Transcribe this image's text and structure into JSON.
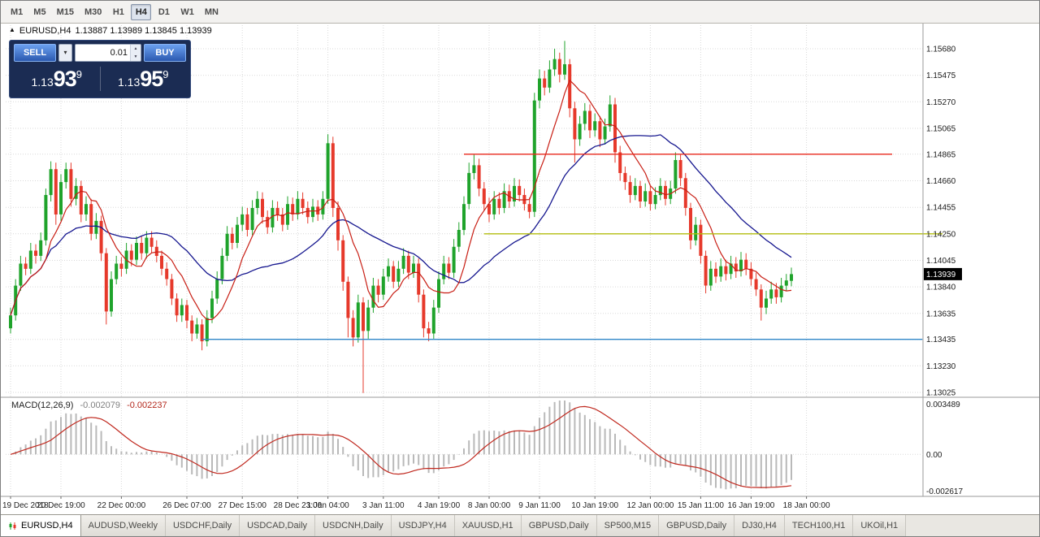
{
  "toolbar": {
    "timeframes": [
      {
        "label": "M1"
      },
      {
        "label": "M5"
      },
      {
        "label": "M15"
      },
      {
        "label": "M30"
      },
      {
        "label": "H1"
      },
      {
        "label": "H4"
      },
      {
        "label": "D1"
      },
      {
        "label": "W1"
      },
      {
        "label": "MN"
      }
    ],
    "active": "H4"
  },
  "chart": {
    "symbol": "EURUSD,H4",
    "ohlc": "1.13887 1.13989 1.13845 1.13939"
  },
  "one_click": {
    "sell_label": "SELL",
    "buy_label": "BUY",
    "lot_value": "0.01",
    "sell_price_small": "1.13",
    "sell_price_big": "93",
    "sell_price_sup": "9",
    "buy_price_small": "1.13",
    "buy_price_big": "95",
    "buy_price_sup": "9"
  },
  "price_axis": {
    "labels": [
      "1.15680",
      "1.15475",
      "1.15270",
      "1.15065",
      "1.14865",
      "1.14660",
      "1.14455",
      "1.14250",
      "1.14045",
      "1.13840",
      "1.13635",
      "1.13435",
      "1.13230",
      "1.13025"
    ],
    "current": "1.13939"
  },
  "time_axis": [
    {
      "label": "19 Dec 2018",
      "i": 0
    },
    {
      "label": "20 Dec 19:00",
      "i": 10
    },
    {
      "label": "22 Dec 00:00",
      "i": 22
    },
    {
      "label": "26 Dec 07:00",
      "i": 35
    },
    {
      "label": "27 Dec 15:00",
      "i": 46
    },
    {
      "label": "28 Dec 23:00",
      "i": 57
    },
    {
      "label": "1 Jan 04:00",
      "i": 63
    },
    {
      "label": "3 Jan 11:00",
      "i": 74
    },
    {
      "label": "4 Jan 19:00",
      "i": 85
    },
    {
      "label": "8 Jan 00:00",
      "i": 95
    },
    {
      "label": "9 Jan 11:00",
      "i": 105
    },
    {
      "label": "10 Jan 19:00",
      "i": 116
    },
    {
      "label": "12 Jan 00:00",
      "i": 127
    },
    {
      "label": "15 Jan 11:00",
      "i": 137
    },
    {
      "label": "16 Jan 19:00",
      "i": 147
    },
    {
      "label": "18 Jan 00:00",
      "i": 158
    }
  ],
  "macd": {
    "label": "MACD(12,26,9)",
    "value_main": "-0.002079",
    "value_signal": "-0.002237",
    "axis": [
      "0.003489",
      "0.00",
      "-0.002617"
    ]
  },
  "tabs": [
    {
      "label": "EURUSD,H4",
      "active": true
    },
    {
      "label": "AUDUSD,Weekly",
      "active": false
    },
    {
      "label": "USDCHF,Daily",
      "active": false
    },
    {
      "label": "USDCAD,Daily",
      "active": false
    },
    {
      "label": "USDCNH,Daily",
      "active": false
    },
    {
      "label": "USDJPY,H4",
      "active": false
    },
    {
      "label": "XAUUSD,H1",
      "active": false
    },
    {
      "label": "GBPUSD,Daily",
      "active": false
    },
    {
      "label": "SP500,M15",
      "active": false
    },
    {
      "label": "GBPUSD,Daily",
      "active": false
    },
    {
      "label": "DJ30,H4",
      "active": false
    },
    {
      "label": "TECH100,H1",
      "active": false
    },
    {
      "label": "UKOil,H1",
      "active": false
    }
  ],
  "colors": {
    "bull": "#1fa32b",
    "bear": "#e6392b",
    "ma_fast": "#c81e14",
    "ma_slow": "#16178f",
    "macd_hist": "#b9b9b9",
    "macd_signal": "#c0281e",
    "badge_bg": "#000000"
  },
  "chart_data": {
    "type": "candlestick",
    "symbol": "EURUSD",
    "timeframe": "H4",
    "ma": {
      "fast_period": 8,
      "slow_period": 26
    },
    "macd_params": [
      12,
      26,
      9
    ],
    "hlines": [
      {
        "price": 1.14865,
        "color": "#e8281b",
        "from_i": 90,
        "to_i": 175
      },
      {
        "price": 1.1425,
        "color": "#b3bd0e",
        "from_i": 94,
        "to_i": 185
      },
      {
        "price": 1.13435,
        "color": "#2f86c9",
        "from_i": 38,
        "to_i": 181
      }
    ],
    "candles": [
      [
        1.1352,
        1.1368,
        1.1348,
        1.1362
      ],
      [
        1.1362,
        1.139,
        1.1358,
        1.1385
      ],
      [
        1.1385,
        1.1408,
        1.1381,
        1.1402
      ],
      [
        1.1402,
        1.1407,
        1.1393,
        1.1398
      ],
      [
        1.1398,
        1.1418,
        1.1394,
        1.1412
      ],
      [
        1.1412,
        1.1417,
        1.1402,
        1.1408
      ],
      [
        1.1408,
        1.1426,
        1.1404,
        1.142
      ],
      [
        1.142,
        1.146,
        1.1416,
        1.1455
      ],
      [
        1.1455,
        1.1481,
        1.145,
        1.1475
      ],
      [
        1.1475,
        1.148,
        1.1432,
        1.144
      ],
      [
        1.144,
        1.1471,
        1.1435,
        1.1465
      ],
      [
        1.1465,
        1.148,
        1.146,
        1.1475
      ],
      [
        1.1475,
        1.148,
        1.1446,
        1.1452
      ],
      [
        1.1452,
        1.1468,
        1.1447,
        1.1462
      ],
      [
        1.1462,
        1.1466,
        1.1434,
        1.144
      ],
      [
        1.144,
        1.1454,
        1.1435,
        1.1448
      ],
      [
        1.1448,
        1.1452,
        1.142,
        1.1425
      ],
      [
        1.1425,
        1.1441,
        1.1421,
        1.1435
      ],
      [
        1.1435,
        1.1439,
        1.1404,
        1.141
      ],
      [
        1.141,
        1.1414,
        1.1355,
        1.1365
      ],
      [
        1.1365,
        1.1396,
        1.1361,
        1.139
      ],
      [
        1.139,
        1.1408,
        1.1386,
        1.1402
      ],
      [
        1.1402,
        1.1407,
        1.1392,
        1.1398
      ],
      [
        1.1398,
        1.1418,
        1.1394,
        1.1412
      ],
      [
        1.1412,
        1.1417,
        1.14,
        1.1405
      ],
      [
        1.1405,
        1.1423,
        1.1401,
        1.1418
      ],
      [
        1.1418,
        1.1423,
        1.1405,
        1.141
      ],
      [
        1.141,
        1.1427,
        1.1406,
        1.1422
      ],
      [
        1.1422,
        1.1427,
        1.141,
        1.1415
      ],
      [
        1.1415,
        1.142,
        1.1403,
        1.1408
      ],
      [
        1.1408,
        1.1412,
        1.1393,
        1.1398
      ],
      [
        1.1398,
        1.1403,
        1.1385,
        1.139
      ],
      [
        1.139,
        1.1394,
        1.137,
        1.1375
      ],
      [
        1.1375,
        1.1379,
        1.1357,
        1.1362
      ],
      [
        1.1362,
        1.1375,
        1.1357,
        1.137
      ],
      [
        1.137,
        1.1374,
        1.1352,
        1.1358
      ],
      [
        1.1358,
        1.1362,
        1.1342,
        1.1348
      ],
      [
        1.1348,
        1.136,
        1.1344,
        1.1355
      ],
      [
        1.1355,
        1.1359,
        1.1335,
        1.1342
      ],
      [
        1.1342,
        1.1366,
        1.1338,
        1.136
      ],
      [
        1.136,
        1.1381,
        1.1356,
        1.1375
      ],
      [
        1.1375,
        1.1396,
        1.1371,
        1.139
      ],
      [
        1.139,
        1.1414,
        1.1386,
        1.1408
      ],
      [
        1.1408,
        1.1431,
        1.1404,
        1.1425
      ],
      [
        1.1425,
        1.143,
        1.1413,
        1.1418
      ],
      [
        1.1418,
        1.1438,
        1.1414,
        1.1432
      ],
      [
        1.1432,
        1.1446,
        1.1427,
        1.144
      ],
      [
        1.144,
        1.1445,
        1.1423,
        1.1428
      ],
      [
        1.1428,
        1.1451,
        1.1424,
        1.1445
      ],
      [
        1.1445,
        1.1458,
        1.144,
        1.1452
      ],
      [
        1.1452,
        1.1457,
        1.1433,
        1.1438
      ],
      [
        1.1438,
        1.1443,
        1.1425,
        1.143
      ],
      [
        1.143,
        1.1451,
        1.1426,
        1.1445
      ],
      [
        1.1445,
        1.145,
        1.1435,
        1.144
      ],
      [
        1.144,
        1.1445,
        1.1427,
        1.1432
      ],
      [
        1.1432,
        1.1454,
        1.1428,
        1.1448
      ],
      [
        1.1448,
        1.1453,
        1.1435,
        1.144
      ],
      [
        1.144,
        1.1458,
        1.1436,
        1.1452
      ],
      [
        1.1452,
        1.1457,
        1.144,
        1.1445
      ],
      [
        1.1445,
        1.145,
        1.1433,
        1.1438
      ],
      [
        1.1438,
        1.1452,
        1.1434,
        1.1446
      ],
      [
        1.1446,
        1.1451,
        1.1435,
        1.144
      ],
      [
        1.144,
        1.1458,
        1.1436,
        1.1452
      ],
      [
        1.1452,
        1.1502,
        1.1448,
        1.1495
      ],
      [
        1.1495,
        1.15,
        1.1438,
        1.1445
      ],
      [
        1.1445,
        1.145,
        1.1412,
        1.142
      ],
      [
        1.142,
        1.1424,
        1.1381,
        1.1388
      ],
      [
        1.1388,
        1.1392,
        1.1345,
        1.136
      ],
      [
        1.136,
        1.1366,
        1.1338,
        1.1345
      ],
      [
        1.1345,
        1.1378,
        1.1341,
        1.1372
      ],
      [
        1.1372,
        1.1376,
        1.1302,
        1.135
      ],
      [
        1.135,
        1.1374,
        1.1344,
        1.1368
      ],
      [
        1.1368,
        1.1391,
        1.1364,
        1.1385
      ],
      [
        1.1385,
        1.139,
        1.1372,
        1.1378
      ],
      [
        1.1378,
        1.1398,
        1.1374,
        1.1392
      ],
      [
        1.1392,
        1.1406,
        1.1388,
        1.14
      ],
      [
        1.14,
        1.1404,
        1.1383,
        1.1388
      ],
      [
        1.1388,
        1.1404,
        1.1384,
        1.1398
      ],
      [
        1.1398,
        1.1414,
        1.1394,
        1.1408
      ],
      [
        1.1408,
        1.1412,
        1.139,
        1.1395
      ],
      [
        1.1395,
        1.1408,
        1.1391,
        1.1402
      ],
      [
        1.1402,
        1.1406,
        1.1372,
        1.1378
      ],
      [
        1.1378,
        1.1382,
        1.1345,
        1.1352
      ],
      [
        1.1352,
        1.1357,
        1.1342,
        1.1348
      ],
      [
        1.1348,
        1.1374,
        1.1344,
        1.1368
      ],
      [
        1.1368,
        1.1396,
        1.1364,
        1.139
      ],
      [
        1.139,
        1.1408,
        1.1386,
        1.1402
      ],
      [
        1.1402,
        1.1407,
        1.139,
        1.1395
      ],
      [
        1.1395,
        1.1421,
        1.1391,
        1.1415
      ],
      [
        1.1415,
        1.1434,
        1.1411,
        1.1428
      ],
      [
        1.1428,
        1.1454,
        1.1424,
        1.1448
      ],
      [
        1.1448,
        1.148,
        1.1444,
        1.1472
      ],
      [
        1.1472,
        1.1486,
        1.1467,
        1.1478
      ],
      [
        1.1478,
        1.1483,
        1.1454,
        1.146
      ],
      [
        1.146,
        1.1465,
        1.1443,
        1.1448
      ],
      [
        1.1448,
        1.1453,
        1.1434,
        1.144
      ],
      [
        1.144,
        1.1458,
        1.1436,
        1.1452
      ],
      [
        1.1452,
        1.1457,
        1.144,
        1.1445
      ],
      [
        1.1445,
        1.1464,
        1.1441,
        1.1458
      ],
      [
        1.1458,
        1.1463,
        1.1445,
        1.145
      ],
      [
        1.145,
        1.1468,
        1.1446,
        1.1462
      ],
      [
        1.1462,
        1.1467,
        1.145,
        1.1455
      ],
      [
        1.1455,
        1.146,
        1.1443,
        1.1448
      ],
      [
        1.1448,
        1.1453,
        1.1437,
        1.1442
      ],
      [
        1.1442,
        1.1534,
        1.1438,
        1.1528
      ],
      [
        1.1528,
        1.1552,
        1.1522,
        1.1545
      ],
      [
        1.1545,
        1.1551,
        1.1532,
        1.1538
      ],
      [
        1.1538,
        1.1559,
        1.1534,
        1.1552
      ],
      [
        1.1552,
        1.1568,
        1.1547,
        1.156
      ],
      [
        1.156,
        1.1565,
        1.1542,
        1.1548
      ],
      [
        1.1548,
        1.1574,
        1.1544,
        1.1556
      ],
      [
        1.1556,
        1.156,
        1.1515,
        1.1522
      ],
      [
        1.1522,
        1.1527,
        1.148,
        1.1498
      ],
      [
        1.1498,
        1.1516,
        1.1493,
        1.151
      ],
      [
        1.151,
        1.1526,
        1.1505,
        1.152
      ],
      [
        1.152,
        1.1525,
        1.1499,
        1.1505
      ],
      [
        1.1505,
        1.1518,
        1.15,
        1.1512
      ],
      [
        1.1512,
        1.1516,
        1.1492,
        1.1498
      ],
      [
        1.1498,
        1.1514,
        1.1494,
        1.1508
      ],
      [
        1.1508,
        1.1532,
        1.1504,
        1.1525
      ],
      [
        1.1525,
        1.153,
        1.148,
        1.1488
      ],
      [
        1.1488,
        1.1493,
        1.1466,
        1.1472
      ],
      [
        1.1472,
        1.1477,
        1.1459,
        1.1465
      ],
      [
        1.1465,
        1.147,
        1.1449,
        1.1455
      ],
      [
        1.1455,
        1.1468,
        1.1451,
        1.1462
      ],
      [
        1.1462,
        1.1466,
        1.1445,
        1.145
      ],
      [
        1.145,
        1.1464,
        1.1446,
        1.1458
      ],
      [
        1.1458,
        1.1462,
        1.1443,
        1.1448
      ],
      [
        1.1448,
        1.1461,
        1.1444,
        1.1455
      ],
      [
        1.1455,
        1.1468,
        1.1451,
        1.1462
      ],
      [
        1.1462,
        1.1466,
        1.1447,
        1.1452
      ],
      [
        1.1452,
        1.1466,
        1.1448,
        1.146
      ],
      [
        1.146,
        1.1488,
        1.1456,
        1.1482
      ],
      [
        1.1482,
        1.1486,
        1.1462,
        1.1468
      ],
      [
        1.1468,
        1.1472,
        1.1439,
        1.1445
      ],
      [
        1.1445,
        1.1449,
        1.1413,
        1.142
      ],
      [
        1.142,
        1.1438,
        1.1416,
        1.1432
      ],
      [
        1.1432,
        1.1436,
        1.1402,
        1.1408
      ],
      [
        1.1408,
        1.1412,
        1.1379,
        1.1385
      ],
      [
        1.1385,
        1.1404,
        1.1381,
        1.1398
      ],
      [
        1.1398,
        1.1403,
        1.1387,
        1.1392
      ],
      [
        1.1392,
        1.1406,
        1.1388,
        1.14
      ],
      [
        1.14,
        1.1405,
        1.1389,
        1.1394
      ],
      [
        1.1394,
        1.1408,
        1.139,
        1.1402
      ],
      [
        1.1402,
        1.1407,
        1.1391,
        1.1396
      ],
      [
        1.1396,
        1.1411,
        1.1392,
        1.1405
      ],
      [
        1.1405,
        1.141,
        1.1393,
        1.1398
      ],
      [
        1.1398,
        1.1403,
        1.1385,
        1.139
      ],
      [
        1.139,
        1.1395,
        1.1377,
        1.1382
      ],
      [
        1.1382,
        1.1386,
        1.1358,
        1.1368
      ],
      [
        1.1368,
        1.1381,
        1.1363,
        1.1375
      ],
      [
        1.1375,
        1.1388,
        1.1371,
        1.1382
      ],
      [
        1.1382,
        1.1387,
        1.1371,
        1.1376
      ],
      [
        1.1376,
        1.1391,
        1.1372,
        1.1385
      ],
      [
        1.1385,
        1.1394,
        1.1381,
        1.1389
      ],
      [
        1.13887,
        1.13989,
        1.13845,
        1.13939
      ]
    ]
  }
}
